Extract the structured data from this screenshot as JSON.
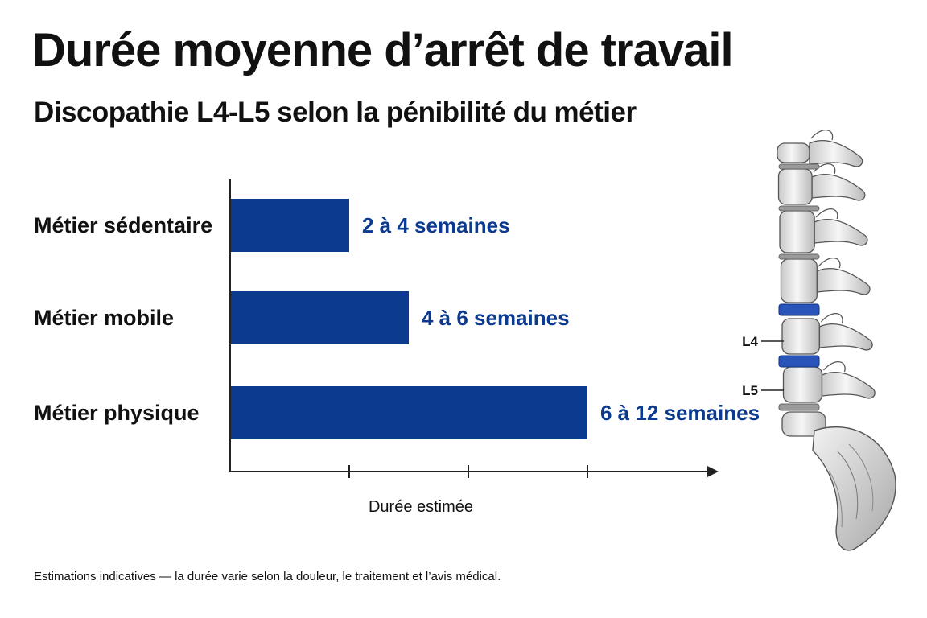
{
  "header": {
    "title": "Durée moyenne d’arrêt de travail",
    "subtitle": "Discopathie L4-L5 selon la pénibilité du métier"
  },
  "footnote": "Estimations indicatives — la durée varie selon la douleur, le traitement et l’avis médical.",
  "colors": {
    "bar": "#0b3a8f",
    "value_text": "#0b3a8f",
    "disc_highlight": "#2a55b8"
  },
  "illustration": {
    "icon": "lumbar-spine-illustration",
    "labels": [
      "L4",
      "L5"
    ]
  },
  "chart_data": {
    "type": "bar",
    "orientation": "horizontal",
    "categories": [
      "Métier sédentaire",
      "Métier mobile",
      "Métier physique"
    ],
    "ranges_weeks": [
      [
        2,
        4
      ],
      [
        4,
        6
      ],
      [
        6,
        12
      ]
    ],
    "values": [
      4,
      6,
      12
    ],
    "value_labels": [
      "2 à 4 semaines",
      "4 à 6 semaines",
      "6 à 12 semaines"
    ],
    "xlabel": "Durée estimée",
    "ylabel": "",
    "xlim": [
      0,
      16
    ],
    "x_ticks": [
      4,
      8,
      12
    ],
    "x_tick_labels_shown": false,
    "grid": false,
    "legend": "none"
  }
}
